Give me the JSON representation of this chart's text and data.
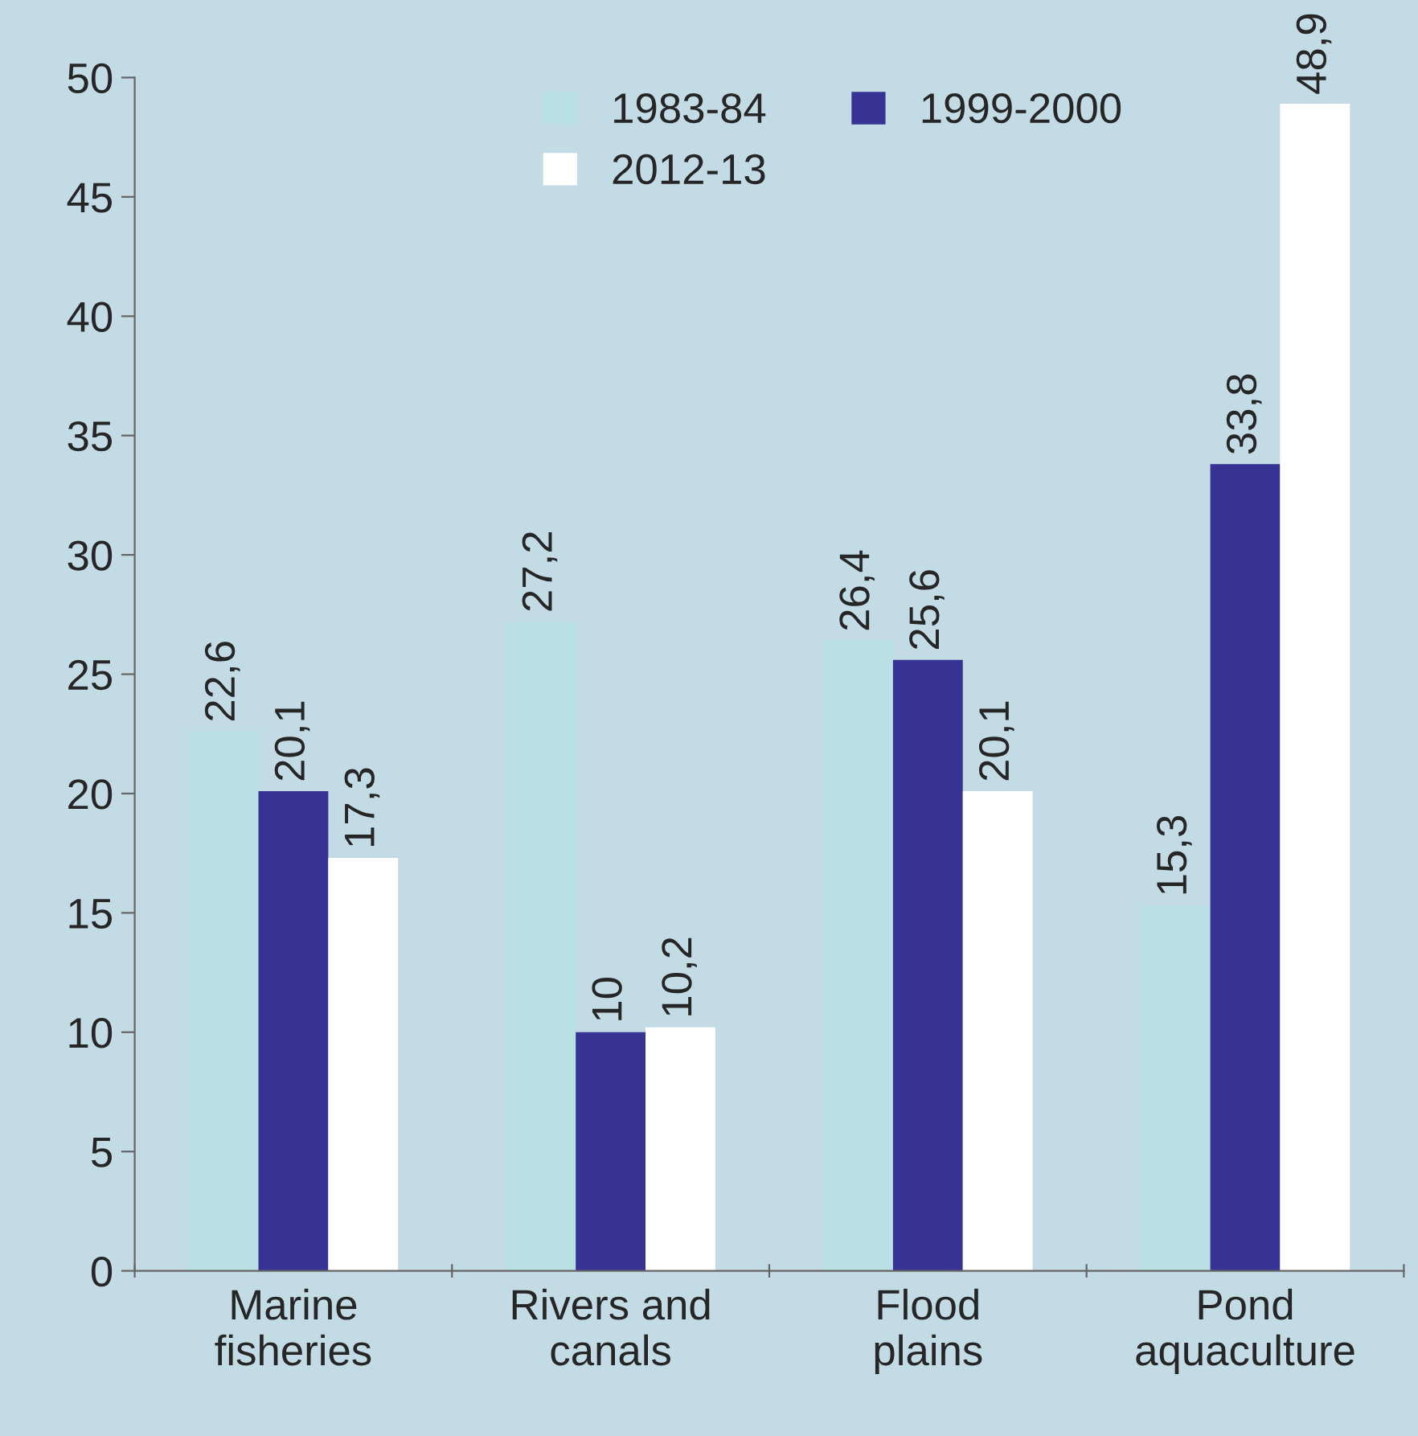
{
  "chart_data": {
    "type": "bar",
    "categories": [
      "Marine\nfisheries",
      "Rivers and\ncanals",
      "Flood\nplains",
      "Pond\naquaculture"
    ],
    "series": [
      {
        "name": "1983-84",
        "color": "#b9e0e3",
        "values": [
          22.6,
          27.2,
          26.4,
          15.3
        ],
        "value_labels": [
          "22,6",
          "27,2",
          "26,4",
          "15,3"
        ]
      },
      {
        "name": "1999-2000",
        "color": "#363394",
        "values": [
          20.1,
          10,
          25.6,
          33.8
        ],
        "value_labels": [
          "20,1",
          "10",
          "25,6",
          "33,8"
        ]
      },
      {
        "name": "2012-13",
        "color": "#ffffff",
        "values": [
          17.3,
          10.2,
          20.1,
          48.9
        ],
        "value_labels": [
          "17,3",
          "10,2",
          "20,1",
          "48,9"
        ]
      }
    ],
    "ylim": [
      0,
      50
    ],
    "yticks": [
      0,
      5,
      10,
      15,
      20,
      25,
      30,
      35,
      40,
      45,
      50
    ],
    "grid": false,
    "legend": "top"
  }
}
